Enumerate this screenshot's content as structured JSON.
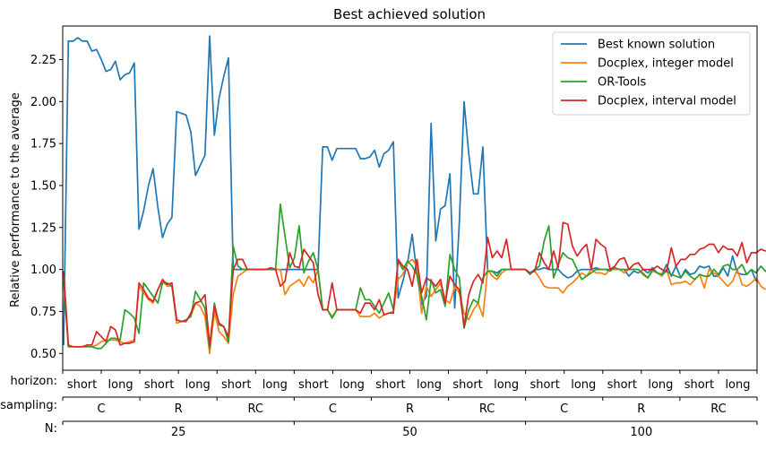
{
  "chart_data": {
    "type": "line",
    "title": "Best achieved solution",
    "xlabel": "",
    "ylabel": "Relative performance to the average",
    "ylim": [
      0.4,
      2.45
    ],
    "yticks": [
      "0.50",
      "0.75",
      "1.00",
      "1.25",
      "1.50",
      "1.75",
      "2.00",
      "2.25"
    ],
    "grid": false,
    "legend_position": "top-right",
    "x_hierarchy": {
      "horizon": {
        "label": "horizon:",
        "values": [
          "short",
          "long",
          "short",
          "long",
          "short",
          "long",
          "short",
          "long",
          "short",
          "long",
          "short",
          "long",
          "short",
          "long",
          "short",
          "long",
          "short",
          "long"
        ]
      },
      "sampling": {
        "label": "sampling:",
        "values": [
          "C",
          "R",
          "RC",
          "C",
          "R",
          "RC",
          "C",
          "R",
          "RC"
        ]
      },
      "N": {
        "label": "N:",
        "values": [
          "25",
          "50",
          "100"
        ]
      }
    },
    "series": [
      {
        "name": "Best known solution",
        "color": "#1f77b4",
        "values": [
          0.55,
          2.36,
          2.36,
          2.38,
          2.36,
          2.36,
          2.3,
          2.31,
          2.25,
          2.18,
          2.19,
          2.24,
          2.13,
          2.16,
          2.17,
          2.23,
          1.24,
          1.35,
          1.5,
          1.6,
          1.37,
          1.19,
          1.27,
          1.31,
          1.94,
          1.93,
          1.92,
          1.82,
          1.56,
          1.62,
          1.68,
          2.39,
          1.8,
          2.02,
          2.15,
          2.26,
          1.0,
          1.0,
          1.0,
          1.0,
          1.0,
          1.0,
          1.0,
          1.0,
          1.0,
          1.0,
          1.0,
          1.0,
          1.0,
          1.0,
          1.0,
          1.0,
          1.0,
          1.0,
          1.0,
          1.73,
          1.73,
          1.65,
          1.72,
          1.72,
          1.72,
          1.72,
          1.72,
          1.66,
          1.66,
          1.67,
          1.71,
          1.61,
          1.69,
          1.71,
          1.76,
          0.83,
          0.93,
          1.04,
          1.21,
          0.97,
          0.79,
          0.84,
          1.87,
          1.17,
          1.36,
          1.38,
          1.57,
          0.77,
          1.28,
          2.0,
          1.69,
          1.45,
          1.45,
          1.73,
          0.99,
          0.99,
          0.98,
          1.0,
          1.0,
          1.0,
          1.0,
          1.0,
          1.0,
          0.98,
          1.0,
          1.0,
          1.01,
          1.0,
          1.0,
          1.0,
          0.97,
          0.95,
          0.96,
          0.99,
          1.0,
          1.0,
          1.0,
          1.01,
          1.0,
          1.0,
          1.0,
          1.0,
          1.0,
          1.0,
          0.96,
          0.99,
          0.98,
          1.0,
          0.98,
          1.01,
          0.98,
          0.97,
          1.03,
          0.96,
          1.02,
          0.95,
          1.0,
          0.97,
          0.98,
          1.02,
          1.01,
          1.02,
          0.96,
          0.96,
          1.01,
          0.96,
          1.08,
          0.98,
          0.97,
          0.97,
          1.0,
          0.93
        ]
      },
      {
        "name": "Docplex, integer model",
        "color": "#ff7f0e",
        "values": [
          0.99,
          0.54,
          0.54,
          0.54,
          0.54,
          0.54,
          0.54,
          0.55,
          0.57,
          0.58,
          0.58,
          0.58,
          0.57,
          0.56,
          0.57,
          0.58,
          0.9,
          0.86,
          0.82,
          0.8,
          0.88,
          0.93,
          0.9,
          0.9,
          0.68,
          0.69,
          0.7,
          0.72,
          0.8,
          0.78,
          0.72,
          0.5,
          0.75,
          0.63,
          0.6,
          0.56,
          0.85,
          0.96,
          0.98,
          1.0,
          1.0,
          1.0,
          1.0,
          1.0,
          1.0,
          1.0,
          1.0,
          0.85,
          0.9,
          0.92,
          0.94,
          0.9,
          0.96,
          0.92,
          1.0,
          0.76,
          0.76,
          0.72,
          0.76,
          0.76,
          0.76,
          0.76,
          0.76,
          0.72,
          0.72,
          0.72,
          0.74,
          0.71,
          0.73,
          0.74,
          0.75,
          0.94,
          0.97,
          1.04,
          1.06,
          1.02,
          0.74,
          0.9,
          0.84,
          0.88,
          0.92,
          0.82,
          0.8,
          0.9,
          0.86,
          0.74,
          0.7,
          0.76,
          0.8,
          0.72,
          1.0,
          0.96,
          0.94,
          0.98,
          1.0,
          1.0,
          1.0,
          1.0,
          1.0,
          0.98,
          0.99,
          0.95,
          0.9,
          0.89,
          0.89,
          0.89,
          0.86,
          0.9,
          0.92,
          0.95,
          0.98,
          0.96,
          1.0,
          0.98,
          0.98,
          0.97,
          1.0,
          1.0,
          1.0,
          0.98,
          1.0,
          1.0,
          1.0,
          0.98,
          0.95,
          0.99,
          0.98,
          0.96,
          1.0,
          0.91,
          0.92,
          0.92,
          0.93,
          0.91,
          0.94,
          0.97,
          0.89,
          1.0,
          0.98,
          0.96,
          0.93,
          0.9,
          0.93,
          1.0,
          0.91,
          0.9,
          0.92,
          0.95,
          0.9,
          0.88
        ]
      },
      {
        "name": "OR-Tools",
        "color": "#2ca02c",
        "values": [
          0.93,
          0.54,
          0.54,
          0.54,
          0.54,
          0.54,
          0.54,
          0.53,
          0.53,
          0.56,
          0.59,
          0.59,
          0.58,
          0.76,
          0.74,
          0.71,
          0.62,
          0.92,
          0.88,
          0.84,
          0.8,
          0.92,
          0.92,
          0.9,
          0.7,
          0.69,
          0.7,
          0.72,
          0.87,
          0.82,
          0.77,
          0.53,
          0.8,
          0.67,
          0.66,
          0.57,
          1.14,
          1.02,
          1.0,
          1.0,
          1.0,
          1.0,
          1.0,
          1.0,
          1.0,
          1.0,
          1.39,
          1.2,
          1.01,
          1.07,
          1.26,
          0.98,
          1.05,
          1.1,
          1.0,
          0.76,
          0.76,
          0.71,
          0.76,
          0.76,
          0.76,
          0.76,
          0.76,
          0.89,
          0.82,
          0.82,
          0.78,
          0.74,
          0.8,
          0.86,
          0.76,
          1.05,
          1.0,
          1.05,
          1.02,
          0.97,
          0.84,
          0.7,
          0.94,
          0.86,
          0.88,
          0.78,
          1.09,
          1.0,
          0.95,
          0.65,
          0.76,
          0.82,
          0.8,
          0.95,
          0.99,
          0.99,
          0.96,
          1.0,
          1.0,
          1.0,
          1.0,
          1.0,
          1.0,
          0.97,
          1.0,
          1.02,
          1.17,
          1.26,
          0.95,
          1.03,
          1.1,
          1.07,
          1.06,
          1.0,
          0.94,
          0.96,
          0.98,
          1.0,
          1.0,
          1.0,
          0.99,
          1.01,
          1.0,
          1.0,
          1.0,
          1.0,
          1.0,
          0.97,
          0.95,
          1.0,
          0.98,
          0.97,
          0.99,
          0.97,
          0.96,
          0.95,
          0.99,
          0.96,
          0.94,
          0.97,
          0.96,
          0.96,
          1.0,
          0.97,
          1.02,
          1.03,
          1.0,
          1.0,
          1.03,
          0.97,
          1.0,
          0.98,
          1.02,
          0.99,
          0.97
        ]
      },
      {
        "name": "Docplex, interval model",
        "color": "#d62728",
        "values": [
          0.99,
          0.55,
          0.54,
          0.54,
          0.54,
          0.55,
          0.55,
          0.63,
          0.6,
          0.57,
          0.66,
          0.64,
          0.55,
          0.56,
          0.56,
          0.57,
          0.92,
          0.88,
          0.83,
          0.81,
          0.88,
          0.94,
          0.91,
          0.92,
          0.7,
          0.69,
          0.69,
          0.74,
          0.8,
          0.81,
          0.85,
          0.55,
          0.78,
          0.68,
          0.66,
          0.6,
          1.0,
          1.06,
          1.06,
          1.0,
          1.0,
          1.0,
          1.0,
          1.0,
          1.01,
          1.0,
          0.9,
          0.93,
          1.1,
          1.02,
          1.01,
          1.12,
          1.08,
          1.04,
          0.85,
          0.76,
          0.76,
          0.92,
          0.76,
          0.76,
          0.76,
          0.76,
          0.76,
          0.74,
          0.8,
          0.8,
          0.76,
          0.82,
          0.73,
          0.74,
          0.74,
          1.06,
          1.02,
          1.0,
          0.9,
          1.06,
          0.86,
          0.95,
          0.93,
          0.9,
          0.94,
          0.8,
          0.96,
          0.91,
          0.88,
          0.66,
          0.85,
          0.93,
          0.97,
          0.92,
          1.19,
          1.07,
          1.11,
          1.07,
          1.18,
          1.0,
          1.0,
          1.0,
          1.0,
          0.98,
          0.99,
          1.1,
          1.04,
          1.0,
          1.11,
          1.01,
          1.28,
          1.27,
          1.14,
          1.08,
          1.12,
          1.15,
          1.0,
          1.18,
          1.15,
          1.13,
          1.0,
          1.02,
          1.06,
          1.07,
          1.0,
          1.03,
          1.04,
          1.0,
          1.0,
          1.0,
          1.02,
          1.0,
          0.99,
          1.13,
          1.02,
          1.06,
          1.06,
          1.09,
          1.09,
          1.12,
          1.13,
          1.15,
          1.15,
          1.1,
          1.14,
          1.12,
          1.12,
          1.08,
          1.16,
          1.04,
          1.1,
          1.1,
          1.12,
          1.11,
          1.11,
          1.12,
          1.15,
          1.13,
          1.1,
          1.2
        ]
      }
    ]
  }
}
